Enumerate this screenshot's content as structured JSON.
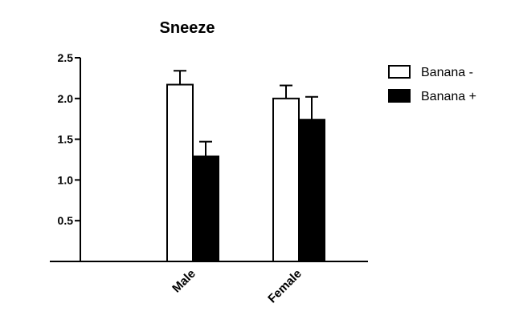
{
  "chart_data": {
    "type": "bar",
    "title": "Sneeze",
    "xlabel": "",
    "ylabel": "",
    "categories": [
      "Male",
      "Female"
    ],
    "series": [
      {
        "name": "Banana -",
        "color": "#ffffff",
        "values": [
          2.17,
          2.0
        ],
        "error": [
          0.17,
          0.16
        ]
      },
      {
        "name": "Banana +",
        "color": "#000000",
        "values": [
          1.29,
          1.74
        ],
        "error": [
          0.18,
          0.28
        ]
      }
    ],
    "ylim": [
      0,
      2.5
    ],
    "yticks": [
      "0.5",
      "1.0",
      "1.5",
      "2.0",
      "2.5"
    ],
    "grid": false,
    "legend_position": "top-right"
  }
}
